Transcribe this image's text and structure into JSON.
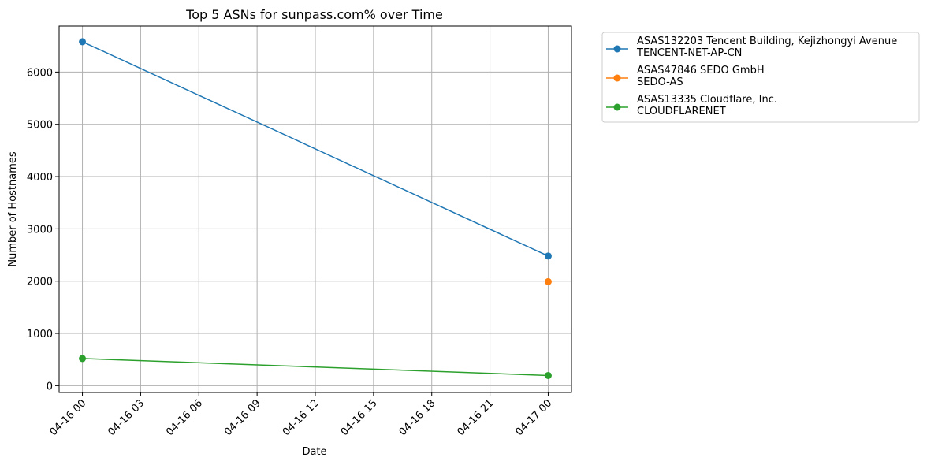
{
  "chart_data": {
    "type": "line",
    "title": "Top 5 ASNs for sunpass.com% over Time",
    "xlabel": "Date",
    "ylabel": "Number of Hostnames",
    "x_ticks": [
      "2024-04-16 00:00",
      "2024-04-16 03:00",
      "2024-04-16 06:00",
      "2024-04-16 09:00",
      "2024-04-16 12:00",
      "2024-04-16 15:00",
      "2024-04-16 18:00",
      "2024-04-16 21:00",
      "2024-04-17 00:00"
    ],
    "x_tick_labels": [
      "04-16 00",
      "04-16 03",
      "04-16 06",
      "04-16 09",
      "04-16 12",
      "04-16 15",
      "04-16 18",
      "04-16 21",
      "04-17 00"
    ],
    "y_ticks": [
      0,
      1000,
      2000,
      3000,
      4000,
      5000,
      6000
    ],
    "y_tick_labels": [
      "0",
      "1000",
      "2000",
      "3000",
      "4000",
      "5000",
      "6000"
    ],
    "xlim": [
      "2024-04-15 22:48",
      "2024-04-17 01:12"
    ],
    "ylim": [
      -130,
      6880
    ],
    "grid": true,
    "legend_position": "outside-upper-right",
    "series": [
      {
        "name": "ASAS132203 Tencent Building, Kejizhongyi Avenue\nTENCENT-NET-AP-CN",
        "legend_lines": [
          "ASAS132203 Tencent Building, Kejizhongyi Avenue",
          "TENCENT-NET-AP-CN"
        ],
        "color": "#1f77b4",
        "x": [
          "2024-04-16 00:00",
          "2024-04-17 00:00"
        ],
        "y": [
          6580,
          2480
        ]
      },
      {
        "name": "ASAS47846 SEDO GmbH\nSEDO-AS",
        "legend_lines": [
          "ASAS47846 SEDO GmbH",
          "SEDO-AS"
        ],
        "color": "#ff7f0e",
        "x": [
          "2024-04-17 00:00"
        ],
        "y": [
          1990
        ]
      },
      {
        "name": "ASAS13335 Cloudflare, Inc.\nCLOUDFLARENET",
        "legend_lines": [
          "ASAS13335 Cloudflare, Inc.",
          "CLOUDFLARENET"
        ],
        "color": "#2ca02c",
        "x": [
          "2024-04-16 00:00",
          "2024-04-17 00:00"
        ],
        "y": [
          520,
          195
        ]
      }
    ]
  }
}
